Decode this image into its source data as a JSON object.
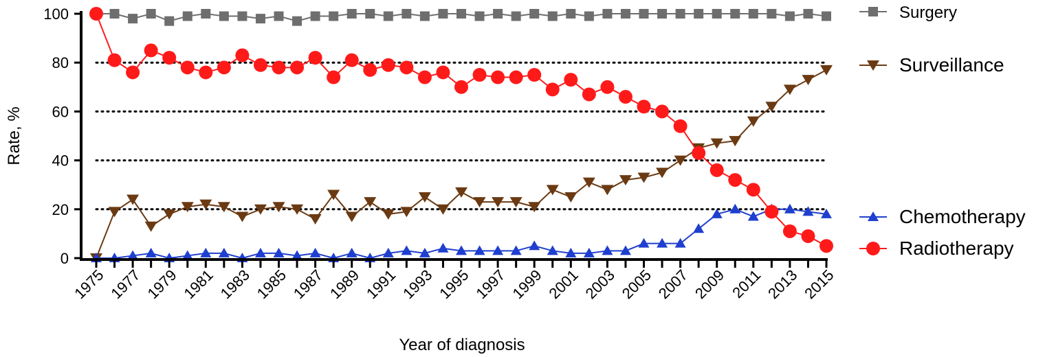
{
  "chart_data": {
    "type": "line",
    "title": "",
    "xlabel": "Year of diagnosis",
    "ylabel": "Rate, %",
    "xlim": [
      1975,
      2015
    ],
    "ylim": [
      0,
      100
    ],
    "yticks": [
      0,
      20,
      40,
      60,
      80,
      100
    ],
    "xticks": [
      1975,
      1977,
      1979,
      1981,
      1983,
      1985,
      1987,
      1989,
      1991,
      1993,
      1995,
      1997,
      1999,
      2001,
      2003,
      2005,
      2007,
      2009,
      2011,
      2013,
      2015
    ],
    "grid": "horizontal dotted at 20, 40, 60, 80",
    "legend_position": "right",
    "x": [
      1975,
      1976,
      1977,
      1978,
      1979,
      1980,
      1981,
      1982,
      1983,
      1984,
      1985,
      1986,
      1987,
      1988,
      1989,
      1990,
      1991,
      1992,
      1993,
      1994,
      1995,
      1996,
      1997,
      1998,
      1999,
      2000,
      2001,
      2002,
      2003,
      2004,
      2005,
      2006,
      2007,
      2008,
      2009,
      2010,
      2011,
      2012,
      2013,
      2014,
      2015
    ],
    "series": [
      {
        "name": "Surgery",
        "color": "#6e6e6e",
        "marker": "square",
        "values": [
          100,
          100,
          98,
          100,
          97,
          99,
          100,
          99,
          99,
          98,
          99,
          97,
          99,
          99,
          100,
          100,
          99,
          100,
          99,
          100,
          100,
          99,
          100,
          99,
          100,
          99,
          100,
          99,
          100,
          100,
          100,
          100,
          100,
          100,
          100,
          100,
          100,
          100,
          99,
          100,
          99
        ]
      },
      {
        "name": "Surveillance",
        "color": "#6b3a12",
        "marker": "triangle-down",
        "values": [
          0,
          19,
          24,
          13,
          18,
          21,
          22,
          21,
          17,
          20,
          21,
          20,
          16,
          26,
          17,
          23,
          18,
          19,
          25,
          20,
          27,
          23,
          23,
          23,
          21,
          28,
          25,
          31,
          28,
          32,
          33,
          35,
          40,
          45,
          47,
          48,
          56,
          62,
          69,
          73,
          77
        ]
      },
      {
        "name": "Chemotherapy",
        "color": "#1f3fcf",
        "marker": "triangle-up",
        "values": [
          0,
          0,
          1,
          2,
          0,
          1,
          2,
          2,
          0,
          2,
          2,
          1,
          2,
          0,
          2,
          0,
          2,
          3,
          2,
          4,
          3,
          3,
          3,
          3,
          5,
          3,
          2,
          2,
          3,
          3,
          6,
          6,
          6,
          12,
          18,
          20,
          17,
          20,
          20,
          19,
          18
        ]
      },
      {
        "name": "Radiotherapy",
        "color": "#ff1a1a",
        "marker": "circle",
        "values": [
          100,
          81,
          76,
          85,
          82,
          78,
          76,
          78,
          83,
          79,
          78,
          78,
          82,
          74,
          81,
          77,
          79,
          78,
          74,
          76,
          70,
          75,
          74,
          74,
          75,
          69,
          73,
          67,
          70,
          66,
          62,
          60,
          54,
          43,
          36,
          32,
          28,
          19,
          11,
          9,
          5
        ]
      }
    ]
  }
}
